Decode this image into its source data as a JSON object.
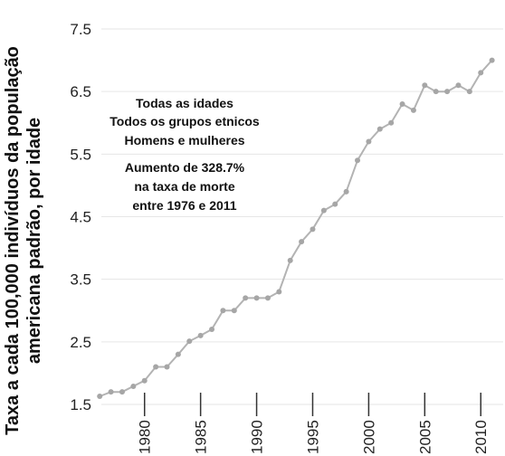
{
  "chart_data": {
    "type": "line",
    "title": "",
    "ylabel_lines": [
      "Taxa a cada 100,000 indivíduos da população",
      "americana padrão, por idade"
    ],
    "xlabel": "",
    "xlim": [
      1975.5,
      2012
    ],
    "ylim": [
      1.5,
      7.5
    ],
    "y_ticks": [
      1.5,
      2.5,
      3.5,
      4.5,
      5.5,
      6.5,
      7.5
    ],
    "y_tick_labels": [
      "1.5",
      "2.5",
      "3.5",
      "4.5",
      "5.5",
      "6.5",
      "7.5"
    ],
    "x_ticks": [
      1980,
      1985,
      1990,
      1995,
      2000,
      2005,
      2010
    ],
    "x_tick_labels": [
      "1980",
      "1985",
      "1990",
      "1995",
      "2000",
      "2005",
      "2010"
    ],
    "grid": "horizontal",
    "colors": {
      "line": "#b3b3b3",
      "marker": "#a6a6a6",
      "grid": "#e6e6e6",
      "axis": "#333333"
    },
    "annotations": [
      "Todas as idades",
      "Todos os grupos etnicos",
      "Homens e mulheres",
      "Aumento de 328.7%",
      "na taxa de morte",
      "entre 1976 e 2011"
    ],
    "series": [
      {
        "x": [
          1976,
          1977,
          1978,
          1979,
          1980,
          1981,
          1982,
          1983,
          1984,
          1985,
          1986,
          1987,
          1988,
          1989,
          1990,
          1991,
          1992,
          1993,
          1994,
          1995,
          1996,
          1997,
          1998,
          1999,
          2000,
          2001,
          2002,
          2003,
          2004,
          2005,
          2006,
          2007,
          2008,
          2009,
          2010,
          2011
        ],
        "values": [
          1.63,
          1.7,
          1.7,
          1.79,
          1.88,
          2.1,
          2.1,
          2.3,
          2.51,
          2.6,
          2.7,
          3.0,
          3.0,
          3.2,
          3.2,
          3.2,
          3.3,
          3.8,
          4.1,
          4.3,
          4.6,
          4.7,
          4.9,
          5.4,
          5.7,
          5.9,
          6.0,
          6.3,
          6.2,
          6.6,
          6.5,
          6.5,
          6.6,
          6.5,
          6.8,
          7.0
        ]
      }
    ]
  }
}
